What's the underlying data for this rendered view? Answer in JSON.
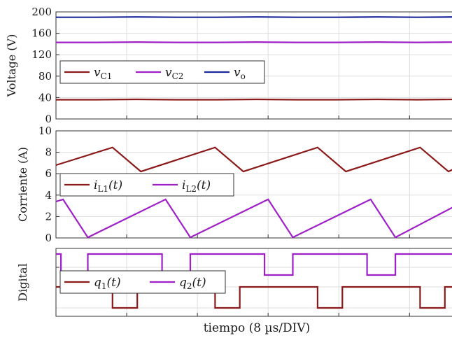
{
  "colors": {
    "red": "#8b1a1a",
    "purple": "#a020c8",
    "blue": "#1d2a9c",
    "grid": "#dddddd",
    "axis": "#333333"
  },
  "chart_data": [
    {
      "type": "line",
      "panel": "voltage",
      "ylabel": "Voltage (V)",
      "ylim": [
        0,
        200
      ],
      "yticks": [
        "0",
        "40",
        "80",
        "120",
        "160",
        "200"
      ],
      "grid": true,
      "legend": {
        "placement": "center-left",
        "entries": [
          "vC1",
          "vC2",
          "vo"
        ]
      },
      "series": [
        {
          "name": "vC1",
          "symbol": "v",
          "sub": "C1",
          "color": "red",
          "values": [
            36,
            36,
            36.6,
            36,
            36,
            36.6,
            36,
            36,
            36.6,
            36,
            36.6
          ]
        },
        {
          "name": "vC2",
          "symbol": "v",
          "sub": "C2",
          "color": "purple",
          "values": [
            143,
            143,
            143.6,
            143,
            143,
            143.6,
            143,
            143,
            143.6,
            143,
            143.6
          ]
        },
        {
          "name": "vo",
          "symbol": "v",
          "sub": "o",
          "color": "blue",
          "values": [
            190,
            190,
            190.6,
            190,
            190,
            190.6,
            190,
            190,
            190.6,
            190,
            190.6
          ]
        }
      ]
    },
    {
      "type": "line",
      "panel": "current",
      "ylabel": "Corriente (A)",
      "ylim": [
        0,
        10
      ],
      "yticks": [
        "0",
        "2",
        "4",
        "6",
        "8",
        "10"
      ],
      "grid": true,
      "legend": {
        "placement": "center-left",
        "entries": [
          "iL1(t)",
          "iL2(t)"
        ]
      },
      "series": [
        {
          "name": "iL1(t)",
          "symbol": "i",
          "sub": "L1",
          "color": "red",
          "points": [
            [
              0,
              6.8
            ],
            [
              0.8,
              8.45
            ],
            [
              1.2,
              6.2
            ],
            [
              2.25,
              8.45
            ],
            [
              2.65,
              6.2
            ],
            [
              3.7,
              8.45
            ],
            [
              4.1,
              6.2
            ],
            [
              5.15,
              8.45
            ],
            [
              5.55,
              6.2
            ],
            [
              5.68,
              6.6
            ]
          ]
        },
        {
          "name": "iL2(t)",
          "symbol": "i",
          "sub": "L2",
          "color": "purple",
          "points": [
            [
              0,
              3.4
            ],
            [
              0.1,
              3.6
            ],
            [
              0.45,
              0.05
            ],
            [
              1.55,
              3.6
            ],
            [
              1.9,
              0.05
            ],
            [
              3.0,
              3.6
            ],
            [
              3.35,
              0.05
            ],
            [
              4.45,
              3.6
            ],
            [
              4.8,
              0.05
            ],
            [
              5.68,
              3.1
            ]
          ]
        }
      ]
    },
    {
      "type": "line",
      "panel": "digital",
      "ylabel": "Digital",
      "grid": true,
      "legend": {
        "placement": "top-left",
        "entries": [
          "q1(t)",
          "q2(t)"
        ]
      },
      "series": [
        {
          "name": "q1(t)",
          "symbol": "q",
          "sub": "1",
          "color": "red",
          "points": [
            [
              0,
              1
            ],
            [
              0.8,
              1
            ],
            [
              0.8,
              0
            ],
            [
              1.15,
              0
            ],
            [
              1.15,
              1
            ],
            [
              2.25,
              1
            ],
            [
              2.25,
              0
            ],
            [
              2.6,
              0
            ],
            [
              2.6,
              1
            ],
            [
              3.7,
              1
            ],
            [
              3.7,
              0
            ],
            [
              4.05,
              0
            ],
            [
              4.05,
              1
            ],
            [
              5.15,
              1
            ],
            [
              5.15,
              0
            ],
            [
              5.5,
              0
            ],
            [
              5.5,
              1
            ],
            [
              5.68,
              1
            ]
          ]
        },
        {
          "name": "q2(t)",
          "symbol": "q",
          "sub": "2",
          "color": "purple",
          "points": [
            [
              0,
              1
            ],
            [
              0.07,
              1
            ],
            [
              0.07,
              0
            ],
            [
              0.45,
              0
            ],
            [
              0.45,
              1
            ],
            [
              1.5,
              1
            ],
            [
              1.5,
              0
            ],
            [
              1.9,
              0
            ],
            [
              1.9,
              1
            ],
            [
              2.95,
              1
            ],
            [
              2.95,
              0
            ],
            [
              3.35,
              0
            ],
            [
              3.35,
              1
            ],
            [
              4.4,
              1
            ],
            [
              4.4,
              0
            ],
            [
              4.8,
              0
            ],
            [
              4.8,
              1
            ],
            [
              5.68,
              1
            ]
          ]
        }
      ]
    }
  ],
  "xaxis": {
    "label": "tiempo (8 µs/DIV)",
    "divisions": 6
  }
}
